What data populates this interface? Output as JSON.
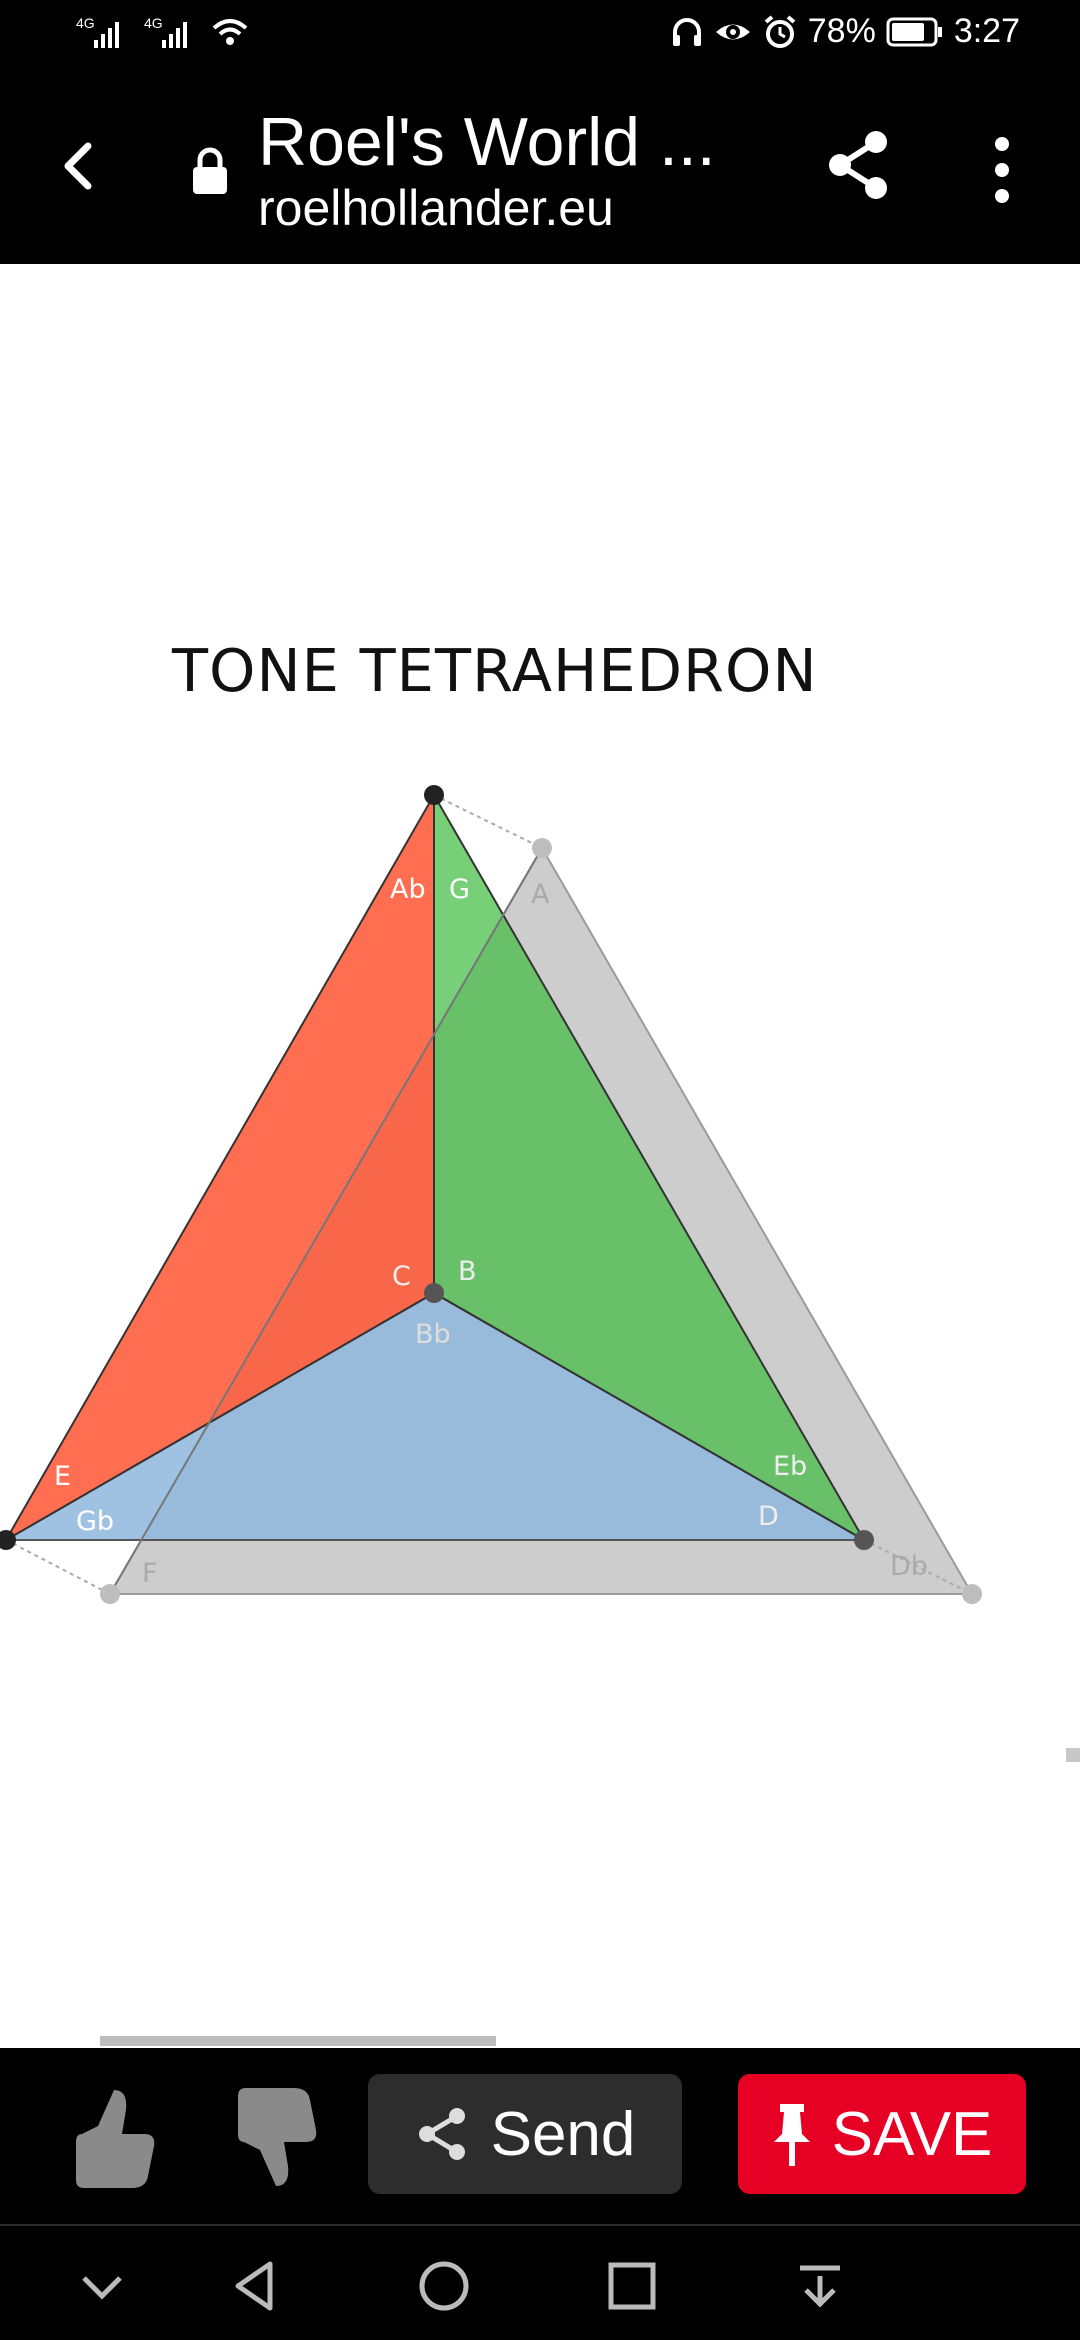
{
  "status_bar": {
    "net1": "4G",
    "net2": "4G",
    "battery": "78%",
    "time": "3:27",
    "icons": [
      "signal-icon",
      "signal-icon",
      "wifi-icon",
      "headphones-icon",
      "eye-icon",
      "alarm-icon",
      "battery-icon"
    ]
  },
  "top_bar": {
    "title": "Roel's World ...",
    "url": "roelhollander.eu",
    "icons": [
      "back-icon",
      "lock-icon",
      "share-icon",
      "more-vert-icon"
    ]
  },
  "content": {
    "heading": "TONE TETRAHEDRON",
    "diagram": {
      "labels": {
        "ab": "Ab",
        "g": "G",
        "a": "A",
        "c": "C",
        "b": "B",
        "bb": "Bb",
        "e": "E",
        "gb": "Gb",
        "f": "F",
        "eb": "Eb",
        "d": "D",
        "db": "Db"
      },
      "colors": {
        "red_face": "#ff5533",
        "green_face": "#3dba3d",
        "blue_face": "#7dc3e6",
        "gray_face": "#cdcdcd",
        "vertex_dark": "#222222",
        "vertex_light": "#bdbdbd"
      }
    }
  },
  "actions": {
    "send_label": "Send",
    "save_label": "SAVE",
    "save_color": "#e60023",
    "icons": [
      "thumbs-up-icon",
      "thumbs-down-icon",
      "share-icon",
      "pin-icon"
    ]
  },
  "nav": {
    "icons": [
      "chevron-down-icon",
      "back-triangle-icon",
      "home-circle-icon",
      "recents-square-icon",
      "collapse-icon"
    ]
  }
}
